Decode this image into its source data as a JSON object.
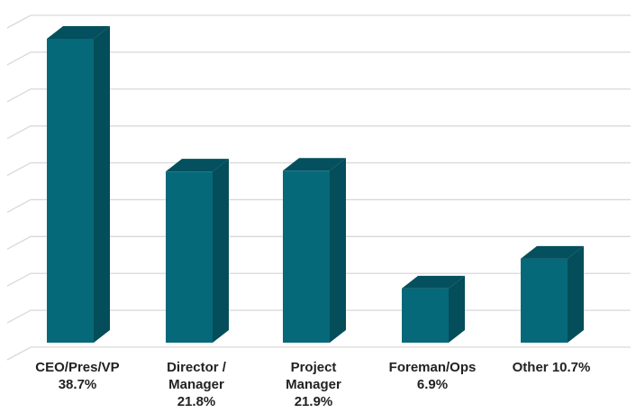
{
  "chart_data": {
    "type": "bar",
    "style": "3d-column",
    "categories": [
      "CEO/Pres/VP",
      "Director / Manager",
      "Project Manager",
      "Foreman/Ops",
      "Other"
    ],
    "values": [
      38.7,
      21.8,
      21.9,
      6.9,
      10.7
    ],
    "unit": "%",
    "category_labels": [
      [
        "CEO/Pres/VP",
        "38.7%"
      ],
      [
        "Director /",
        "Manager",
        "21.8%"
      ],
      [
        "Project",
        "Manager",
        "21.9%"
      ],
      [
        "Foreman/Ops",
        "6.9%"
      ],
      [
        "Other 10.7%"
      ]
    ],
    "ylim": [
      0,
      40
    ],
    "y_gridlines": 9,
    "grid": true,
    "legend": "none",
    "title": "",
    "xlabel": "",
    "ylabel": "",
    "colors": {
      "front": "#06697a",
      "side": "#044d5a",
      "top": "#04505e",
      "grid": "#d9d9d9"
    }
  }
}
